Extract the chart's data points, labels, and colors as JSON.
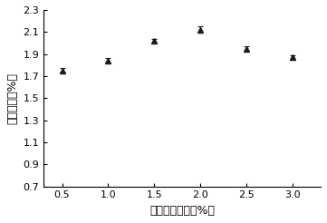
{
  "x": [
    0.5,
    1.0,
    1.5,
    2.0,
    2.5,
    3.0
  ],
  "y": [
    1.75,
    1.84,
    2.02,
    2.12,
    1.95,
    1.87
  ],
  "yerr": [
    0.02,
    0.02,
    0.02,
    0.03,
    0.02,
    0.02
  ],
  "xlabel": "复合酶添加量（%）",
  "ylabel": "多糖得率（%）",
  "xlim": [
    0.3,
    3.3
  ],
  "ylim": [
    0.7,
    2.3
  ],
  "xticks": [
    0.5,
    1.0,
    1.5,
    2.0,
    2.5,
    3.0
  ],
  "yticks": [
    0.7,
    0.9,
    1.1,
    1.3,
    1.5,
    1.7,
    1.9,
    2.1,
    2.3
  ],
  "xtick_labels": [
    "0.5",
    "1.0",
    "1.5",
    "2.0",
    "2.5",
    "3.0"
  ],
  "ytick_labels": [
    "0.7",
    "0.9",
    "1.1",
    "1.3",
    "1.5",
    "1.7",
    "1.9",
    "2.1",
    "2.3"
  ],
  "line_color": "#1a1a1a",
  "marker": "^",
  "marker_size": 5,
  "marker_color": "#1a1a1a",
  "line_width": 1.2,
  "font_size_label": 9,
  "font_size_tick": 8
}
